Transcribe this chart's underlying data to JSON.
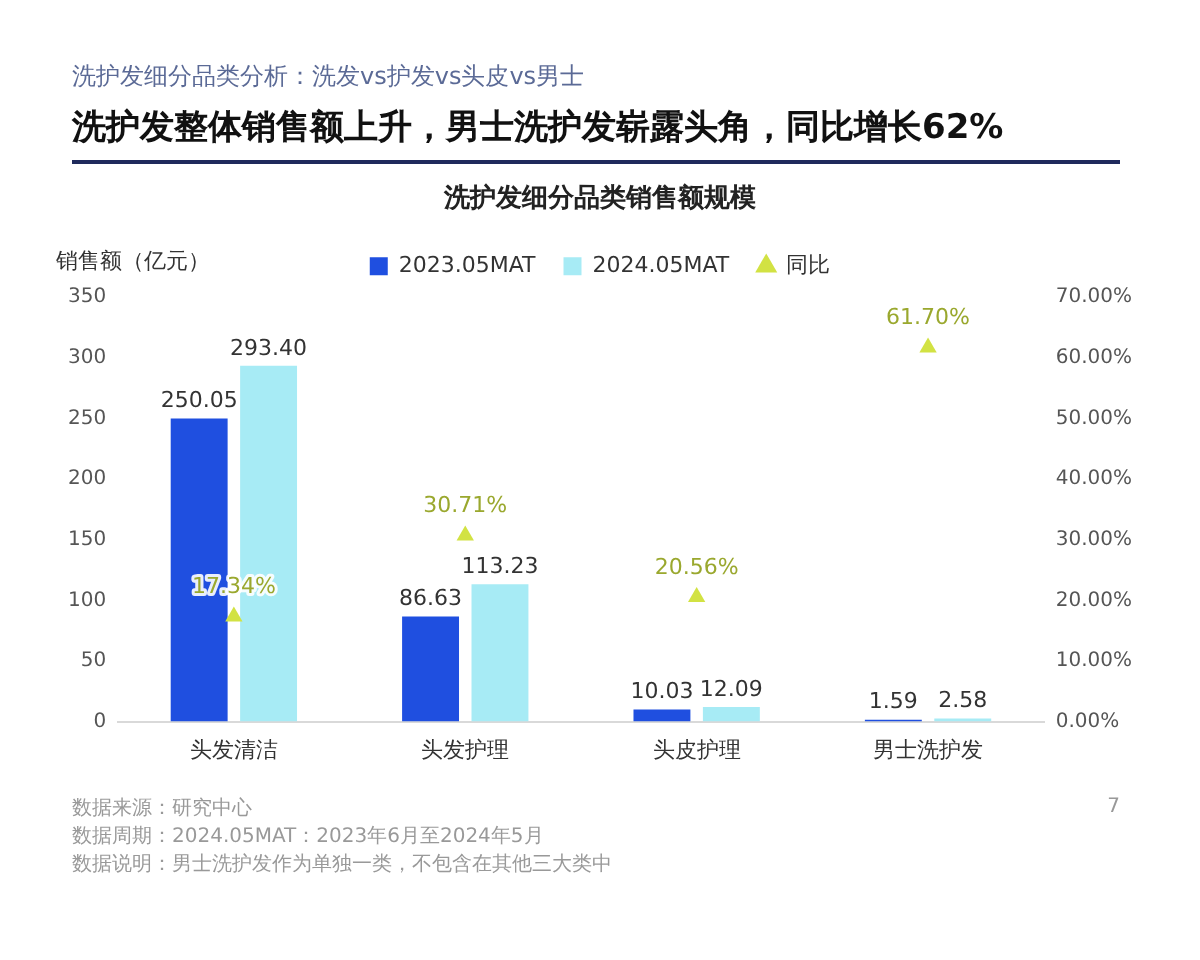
{
  "chart_data": {
    "type": "bar",
    "title": "洗护发整体销售额上升，男士洗护发崭露头角，同比增长62%",
    "subtitle": "洗护发细分品类销售额规模",
    "ylabel": "销售额（亿元）",
    "annotations": [
      "洗护发细分品类分析：洗发vs护发vs头皮vs男士",
      "数据来源：研究中心",
      "数据周期：2024.05MAT：2023年6月至2024年5月",
      "数据说明：男士洗护发作为单独一类，不包含在其他三大类中",
      "7"
    ],
    "categories": [
      "头发清洁",
      "头发护理",
      "头皮护理",
      "男士洗护发"
    ],
    "series": [
      {
        "name": "2023.05MAT",
        "color": "#1f4fe0",
        "values": [
          250.05,
          86.63,
          10.03,
          1.59
        ],
        "value_labels": [
          "250.05",
          "86.63",
          "10.03",
          "1.59"
        ]
      },
      {
        "name": "2024.05MAT",
        "color": "#a7ebf5",
        "values": [
          293.4,
          113.23,
          12.09,
          2.58
        ],
        "value_labels": [
          "293.40",
          "113.23",
          "12.09",
          "2.58"
        ]
      },
      {
        "name": "同比",
        "type": "scatter",
        "axis": "y2",
        "color": "#d2e243",
        "x": [
          "头发清洁",
          "头发护理",
          "头皮护理",
          "男士洗护发"
        ],
        "values": [
          17.34,
          30.71,
          20.56,
          61.7
        ],
        "value_labels": [
          "17.34%",
          "30.71%",
          "20.56%",
          "61.70%"
        ]
      }
    ],
    "ylim": [
      0,
      350
    ],
    "yticks": [
      0,
      50,
      100,
      150,
      200,
      250,
      300,
      350
    ],
    "y2lim": [
      0,
      70
    ],
    "y2ticks": [
      {
        "value": 0,
        "label": "0.00%"
      },
      {
        "value": 10,
        "label": "10.00%"
      },
      {
        "value": 20,
        "label": "20.00%"
      },
      {
        "value": 30,
        "label": "30.00%"
      },
      {
        "value": 40,
        "label": "40.00%"
      },
      {
        "value": 50,
        "label": "50.00%"
      },
      {
        "value": 60,
        "label": "60.00%"
      },
      {
        "value": 70,
        "label": "70.00%"
      }
    ],
    "legend": "top",
    "marker": "triangle"
  }
}
